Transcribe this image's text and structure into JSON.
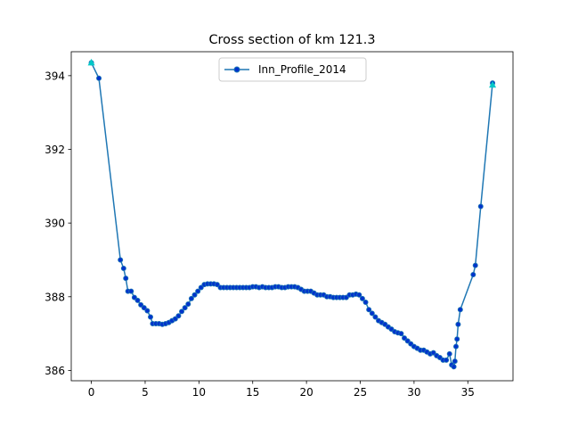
{
  "chart_data": {
    "type": "line",
    "title": "Cross section of km 121.3",
    "xlabel": "",
    "ylabel": "",
    "xlim": [
      -1.87,
      39.2
    ],
    "ylim": [
      385.72,
      394.65
    ],
    "xticks": [
      0,
      5,
      10,
      15,
      20,
      25,
      30,
      35
    ],
    "yticks": [
      386,
      388,
      390,
      392,
      394
    ],
    "grid": false,
    "legend_position": "upper center",
    "series": [
      {
        "name": "Inn_Profile_2014",
        "color": "#1f77b4",
        "marker_color": "#0033cc",
        "marker": "circle",
        "x": [
          0.0,
          0.7,
          2.7,
          3.0,
          3.2,
          3.4,
          3.7,
          4.0,
          4.3,
          4.6,
          4.9,
          5.2,
          5.5,
          5.7,
          6.0,
          6.3,
          6.6,
          6.9,
          7.2,
          7.5,
          7.8,
          8.1,
          8.4,
          8.7,
          9.0,
          9.3,
          9.6,
          9.9,
          10.2,
          10.5,
          10.8,
          11.1,
          11.4,
          11.7,
          12.0,
          12.3,
          12.6,
          12.9,
          13.2,
          13.5,
          13.8,
          14.1,
          14.4,
          14.7,
          15.0,
          15.3,
          15.6,
          15.9,
          16.2,
          16.5,
          16.8,
          17.1,
          17.4,
          17.7,
          18.0,
          18.3,
          18.6,
          18.9,
          19.2,
          19.5,
          19.8,
          20.1,
          20.4,
          20.7,
          21.0,
          21.3,
          21.6,
          21.9,
          22.2,
          22.5,
          22.8,
          23.1,
          23.4,
          23.7,
          24.0,
          24.3,
          24.6,
          24.9,
          25.2,
          25.5,
          25.8,
          26.1,
          26.4,
          26.7,
          27.0,
          27.3,
          27.6,
          27.9,
          28.2,
          28.5,
          28.8,
          29.1,
          29.4,
          29.7,
          30.0,
          30.3,
          30.6,
          30.9,
          31.2,
          31.5,
          31.8,
          32.1,
          32.4,
          32.7,
          33.0,
          33.3,
          33.5,
          33.7,
          33.8,
          33.9,
          34.0,
          34.1,
          34.3,
          35.5,
          35.7,
          36.2,
          37.3
        ],
        "y": [
          394.35,
          393.93,
          389.0,
          388.77,
          388.5,
          388.15,
          388.15,
          387.98,
          387.9,
          387.78,
          387.7,
          387.62,
          387.45,
          387.27,
          387.27,
          387.27,
          387.25,
          387.27,
          387.3,
          387.35,
          387.4,
          387.48,
          387.6,
          387.7,
          387.8,
          387.95,
          388.05,
          388.15,
          388.25,
          388.33,
          388.35,
          388.35,
          388.35,
          388.33,
          388.25,
          388.25,
          388.25,
          388.25,
          388.25,
          388.25,
          388.25,
          388.25,
          388.25,
          388.25,
          388.27,
          388.27,
          388.25,
          388.27,
          388.25,
          388.25,
          388.25,
          388.27,
          388.27,
          388.25,
          388.25,
          388.27,
          388.27,
          388.27,
          388.25,
          388.2,
          388.15,
          388.15,
          388.15,
          388.1,
          388.05,
          388.05,
          388.05,
          388.0,
          388.0,
          387.98,
          387.98,
          387.98,
          387.98,
          387.98,
          388.05,
          388.05,
          388.07,
          388.05,
          387.95,
          387.85,
          387.65,
          387.55,
          387.45,
          387.35,
          387.3,
          387.25,
          387.18,
          387.12,
          387.05,
          387.02,
          387.0,
          386.88,
          386.8,
          386.72,
          386.65,
          386.6,
          386.55,
          386.55,
          386.5,
          386.45,
          386.48,
          386.4,
          386.35,
          386.28,
          386.28,
          386.45,
          386.15,
          386.1,
          386.25,
          386.65,
          386.85,
          387.25,
          387.65,
          388.6,
          388.85,
          390.45,
          393.8
        ]
      }
    ],
    "endpoint_markers": {
      "color": "#00c8c8",
      "marker": "triangle-up",
      "x": [
        0.0,
        37.3
      ],
      "y": [
        394.35,
        393.75
      ]
    }
  }
}
